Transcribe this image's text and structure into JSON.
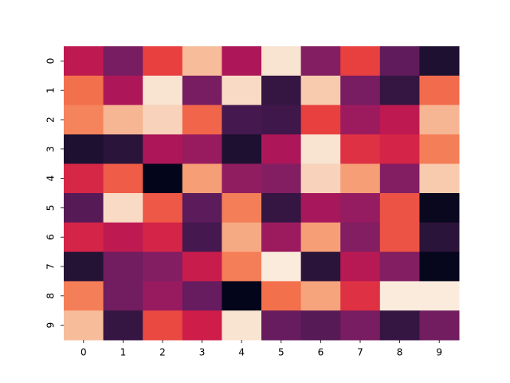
{
  "chart_data": {
    "type": "heatmap",
    "cmap": "rocket",
    "clim": [
      0,
      1
    ],
    "x_categories": [
      0,
      1,
      2,
      3,
      4,
      5,
      6,
      7,
      8,
      9
    ],
    "y_categories": [
      0,
      1,
      2,
      3,
      4,
      5,
      6,
      7,
      8,
      9
    ],
    "values": [
      [
        0.55,
        0.35,
        0.7,
        0.94,
        0.5,
        0.99,
        0.38,
        0.7,
        0.28,
        0.08
      ],
      [
        0.8,
        0.5,
        0.99,
        0.35,
        0.98,
        0.15,
        0.96,
        0.35,
        0.15,
        0.79
      ],
      [
        0.84,
        0.93,
        0.97,
        0.78,
        0.2,
        0.18,
        0.7,
        0.45,
        0.55,
        0.93
      ],
      [
        0.08,
        0.12,
        0.5,
        0.44,
        0.08,
        0.5,
        0.99,
        0.66,
        0.62,
        0.83
      ],
      [
        0.63,
        0.76,
        0.0,
        0.89,
        0.42,
        0.38,
        0.97,
        0.89,
        0.38,
        0.96
      ],
      [
        0.25,
        0.98,
        0.75,
        0.27,
        0.83,
        0.15,
        0.48,
        0.43,
        0.74,
        0.02
      ],
      [
        0.62,
        0.55,
        0.62,
        0.2,
        0.91,
        0.45,
        0.89,
        0.38,
        0.74,
        0.12
      ],
      [
        0.1,
        0.33,
        0.38,
        0.58,
        0.83,
        1.0,
        0.12,
        0.53,
        0.38,
        0.01
      ],
      [
        0.83,
        0.33,
        0.44,
        0.3,
        0.0,
        0.8,
        0.9,
        0.66,
        1.0,
        1.0
      ],
      [
        0.94,
        0.15,
        0.72,
        0.6,
        0.99,
        0.3,
        0.25,
        0.35,
        0.15,
        0.33
      ]
    ]
  }
}
